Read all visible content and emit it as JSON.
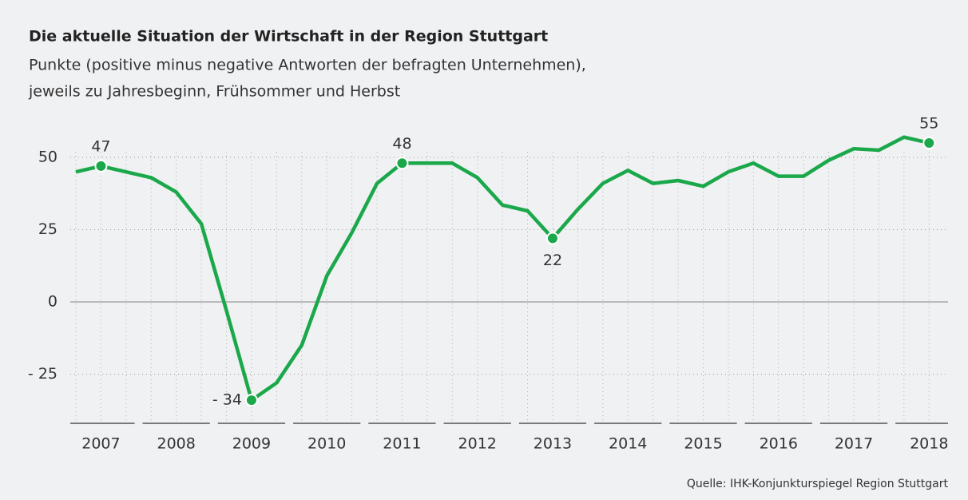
{
  "chart_data": {
    "type": "line",
    "title": "Die aktuelle Situation der Wirtschaft in der Region Stuttgart",
    "subtitle": [
      "Punkte (positive minus negative Antworten der befragten Unternehmen),",
      "jeweils zu Jahresbeginn, Frühsommer und Herbst"
    ],
    "source": "Quelle: IHK-Konjunkturspiegel Region Stuttgart",
    "categories": [
      null,
      "2007",
      null,
      null,
      "2008",
      null,
      null,
      "2009",
      null,
      null,
      "2010",
      null,
      null,
      "2011",
      null,
      null,
      "2012",
      null,
      null,
      "2013",
      null,
      null,
      "2014",
      null,
      null,
      "2015",
      null,
      null,
      "2016",
      null,
      null,
      "2017",
      null,
      null,
      "2018"
    ],
    "series": [
      {
        "name": "Punkte",
        "color": "#1aa84a",
        "values": [
          45,
          47,
          45,
          43,
          38,
          27,
          -3,
          -34,
          -28,
          -15,
          9,
          24,
          41,
          48,
          48,
          48,
          43,
          33.5,
          31.5,
          22,
          32,
          41,
          45.5,
          41,
          42,
          40,
          45,
          48,
          43.5,
          43.5,
          49,
          53,
          52.5,
          57,
          55
        ],
        "value_labels": [
          null,
          "47",
          null,
          null,
          null,
          null,
          null,
          "- 34",
          null,
          null,
          null,
          null,
          null,
          "48",
          null,
          null,
          null,
          null,
          null,
          "22",
          null,
          null,
          null,
          null,
          null,
          null,
          null,
          null,
          null,
          null,
          null,
          null,
          null,
          null,
          "55"
        ]
      }
    ],
    "ylim": [
      -42,
      63
    ],
    "yticks": [
      {
        "value": -25,
        "label": "- 25"
      },
      0,
      25,
      50
    ],
    "grid": true
  }
}
